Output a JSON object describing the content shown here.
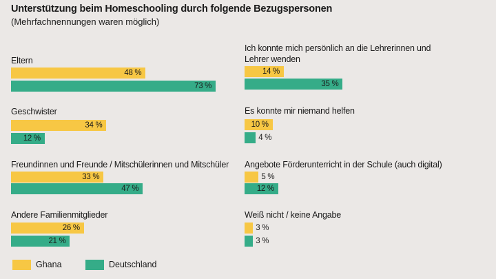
{
  "chart_data": {
    "type": "bar",
    "orientation": "horizontal",
    "title": "Unterstützung beim Homeschooling durch folgende Bezugspersonen",
    "subtitle": "(Mehrfachnennungen waren möglich)",
    "unit": "%",
    "categories": [
      "Eltern",
      "Geschwister",
      "Freundinnen und Freunde / Mitschülerinnen und Mitschüler",
      "Andere Familienmitglieder",
      "Ich konnte mich persönlich an die Lehrerinnen und Lehrer wenden",
      "Es konnte mir niemand helfen",
      "Angebote Förderunterricht in der Schule (auch digital)",
      "Weiß nicht / keine Angabe"
    ],
    "series": [
      {
        "name": "Ghana",
        "color": "#f7c744",
        "values": [
          48,
          34,
          33,
          26,
          14,
          10,
          5,
          3
        ]
      },
      {
        "name": "Deutschland",
        "color": "#35ac88",
        "values": [
          73,
          12,
          47,
          21,
          35,
          4,
          12,
          3
        ]
      }
    ],
    "legend": "bottom-left",
    "grid": false
  }
}
